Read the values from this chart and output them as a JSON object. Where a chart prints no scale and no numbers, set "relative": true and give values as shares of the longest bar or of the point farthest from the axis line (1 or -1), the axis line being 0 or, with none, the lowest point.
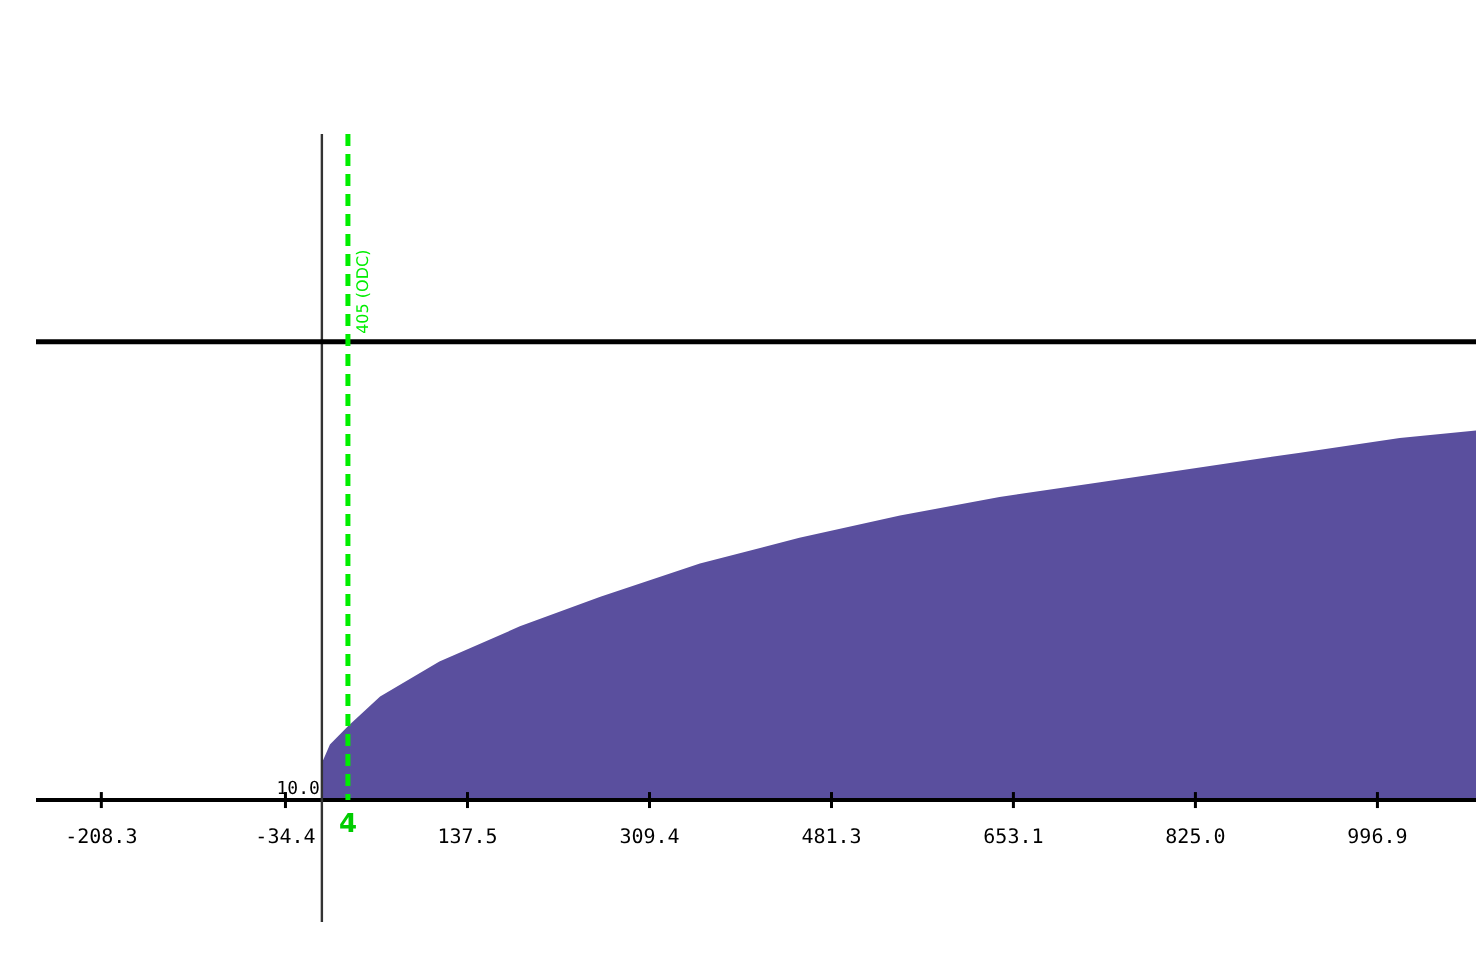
{
  "chart_data": {
    "type": "area",
    "relative": true,
    "x": [
      0,
      7.6,
      24.6,
      55,
      111,
      187,
      263,
      357,
      451,
      546,
      640,
      735,
      829,
      924,
      1018,
      1090
    ],
    "series": [
      {
        "color": "#5a4f9e",
        "values": [
          0.1,
          0.15,
          0.2,
          0.28,
          0.375,
          0.47,
          0.55,
          0.64,
          0.71,
          0.77,
          0.82,
          0.86,
          0.9,
          0.94,
          0.98,
          1.0
        ]
      }
    ],
    "xlim": [
      -270,
      1090
    ],
    "xticks": [
      -208.3,
      -34.4,
      137.5,
      309.4,
      481.3,
      653.1,
      {
        "value": 825.0,
        "label": "825.0"
      },
      996.9
    ],
    "legend": false,
    "ref_lines": [
      {
        "axis": "y",
        "value": 1.24,
        "color": "#000000"
      },
      {
        "axis": "x",
        "value": 24.6,
        "label": "405 (ODC)",
        "color": "#00ee00",
        "line_style": "dashed"
      }
    ],
    "annotations": [
      {
        "text": "4",
        "x": 24.6,
        "y": 0
      },
      {
        "text": "10.0",
        "x": 0,
        "y": 0
      }
    ]
  }
}
